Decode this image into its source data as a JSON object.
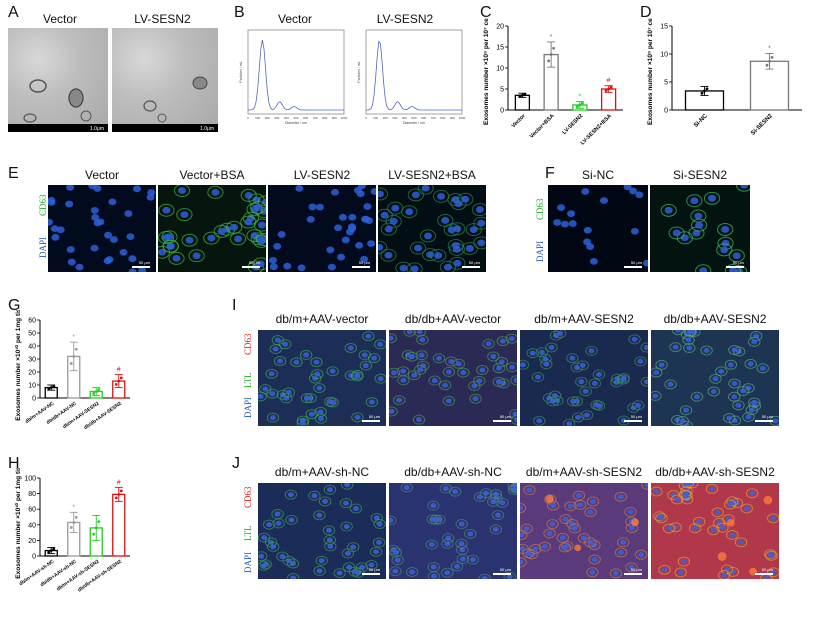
{
  "panels": {
    "A": {
      "label": "A",
      "titles": [
        "Vector",
        "LV-SESN2"
      ],
      "scale": "1.0μm"
    },
    "B": {
      "label": "B",
      "titles": [
        "Vector",
        "LV-SESN2"
      ],
      "xlabel": "Diameter / nm",
      "ylabel": "Particles / mL",
      "xticks": [
        "0",
        "100",
        "200",
        "300",
        "400",
        "500",
        "600",
        "700",
        "800",
        "900",
        "1000"
      ]
    },
    "C": {
      "label": "C"
    },
    "D": {
      "label": "D"
    },
    "E": {
      "label": "E",
      "titles": [
        "Vector",
        "Vector+BSA",
        "LV-SESN2",
        "LV-SESN2+BSA"
      ],
      "stain1": "CD63",
      "stain2": "DAPI",
      "scale": "50 μm"
    },
    "F": {
      "label": "F",
      "titles": [
        "Si-NC",
        "Si-SESN2"
      ],
      "stain1": "CD63",
      "stain2": "DAPI",
      "scale": "50 μm"
    },
    "G": {
      "label": "G"
    },
    "H": {
      "label": "H"
    },
    "I": {
      "label": "I",
      "titles": [
        "db/m+AAV-vector",
        "db/db+AAV-vector",
        "db/m+AAV-SESN2",
        "db/db+AAV-SESN2"
      ],
      "stain1": "CD63",
      "stain2": "LTL",
      "stain3": "DAPI",
      "scale": "50 μm"
    },
    "J": {
      "label": "J",
      "titles": [
        "db/m+AAV-sh-NC",
        "db/db+AAV-sh-NC",
        "db/m+AAV-sh-SESN2",
        "db/db+AAV-sh-SESN2"
      ],
      "stain1": "CD63",
      "stain2": "LTL",
      "stain3": "DAPI",
      "scale": "50 μm"
    }
  },
  "chart_data": [
    {
      "id": "C",
      "type": "bar",
      "ylabel": "Exosomes number ×10⁹ per 10⁷ cells",
      "categories": [
        "Vector",
        "Vector+BSA",
        "LV-SESN2",
        "LV-SESN2+BSA"
      ],
      "values": [
        3.5,
        13.2,
        1.2,
        5.0
      ],
      "errors": [
        0.5,
        3.0,
        0.8,
        0.8
      ],
      "colors": [
        "#000000",
        "#777777",
        "#22cc22",
        "#dd1111"
      ],
      "marks": [
        "",
        "*",
        "*",
        "#"
      ],
      "ylim": [
        0,
        20
      ],
      "yticks": [
        0,
        5,
        10,
        15,
        20
      ]
    },
    {
      "id": "D",
      "type": "bar",
      "ylabel": "Exosomes number ×10⁹ per 10⁷ cells",
      "categories": [
        "Si-NC",
        "Si-SESN2"
      ],
      "values": [
        3.4,
        8.7
      ],
      "errors": [
        0.8,
        1.4
      ],
      "colors": [
        "#000000",
        "#777777"
      ],
      "marks": [
        "",
        "*"
      ],
      "ylim": [
        0,
        15
      ],
      "yticks": [
        0,
        5,
        10,
        15
      ]
    },
    {
      "id": "G",
      "type": "bar",
      "ylabel": "Exosomes number ×10¹⁰ per 1mg tissue",
      "categories": [
        "db/m+AAV-NC",
        "db/db+AAV-NC",
        "db/m+AAV-SESN2",
        "db/db+AAV-SESN2"
      ],
      "values": [
        8,
        32,
        5,
        13
      ],
      "errors": [
        2,
        11,
        3,
        5
      ],
      "colors": [
        "#000000",
        "#999999",
        "#22cc22",
        "#dd1111"
      ],
      "marks": [
        "",
        "*",
        "",
        "#"
      ],
      "ylim": [
        0,
        60
      ],
      "yticks": [
        0,
        10,
        20,
        30,
        40,
        50,
        60
      ]
    },
    {
      "id": "H",
      "type": "bar",
      "ylabel": "Exosomes number ×10¹⁰ per 1mg tissue",
      "categories": [
        "db/m+AAV-sh-NC",
        "db/db+AAV-sh-NC",
        "db/m+AAV-sh-SESN2",
        "db/db+AAV-sh-SESN2"
      ],
      "values": [
        7,
        43,
        36,
        79
      ],
      "errors": [
        4,
        13,
        16,
        9
      ],
      "colors": [
        "#000000",
        "#999999",
        "#22cc22",
        "#dd1111"
      ],
      "marks": [
        "",
        "*",
        "",
        "#"
      ],
      "ylim": [
        0,
        100
      ],
      "yticks": [
        0,
        20,
        40,
        60,
        80,
        100
      ]
    }
  ]
}
